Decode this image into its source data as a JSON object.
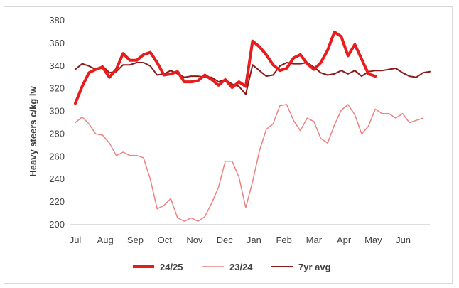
{
  "chart_data": {
    "type": "line",
    "ylabel": "Heavy steers c/kg lw",
    "xlabel": "",
    "title": "",
    "ylim": [
      200,
      380
    ],
    "yticks": [
      200,
      220,
      240,
      260,
      280,
      300,
      320,
      340,
      360,
      380
    ],
    "xticks": [
      "Jul",
      "Aug",
      "Sep",
      "Oct",
      "Nov",
      "Dec",
      "Jan",
      "Feb",
      "Mar",
      "Apr",
      "May",
      "Jun"
    ],
    "grid": "horizontal",
    "legend_position": "bottom",
    "series": [
      {
        "name": "24/25",
        "color": "#e81c1c",
        "width": 4,
        "values": [
          307,
          322,
          334,
          337,
          339,
          330,
          337,
          351,
          345,
          345,
          350,
          352,
          343,
          332,
          333,
          335,
          326,
          326,
          327,
          332,
          328,
          323,
          328,
          321,
          326,
          322,
          362,
          357,
          350,
          341,
          336,
          338,
          347,
          350,
          342,
          337,
          343,
          354,
          370,
          366,
          349,
          359,
          346,
          333,
          331
        ]
      },
      {
        "name": "23/24",
        "color": "#f08080",
        "width": 1.5,
        "values": [
          290,
          295,
          289,
          280,
          279,
          272,
          261,
          264,
          261,
          261,
          259,
          240,
          214,
          217,
          223,
          206,
          203,
          206,
          203,
          207,
          219,
          233,
          256,
          256,
          242,
          215,
          238,
          265,
          284,
          289,
          305,
          306,
          292,
          283,
          294,
          291,
          276,
          272,
          288,
          301,
          306,
          297,
          280,
          287,
          302,
          298,
          298,
          294,
          298,
          290,
          292,
          294
        ]
      },
      {
        "name": "7yr avg",
        "color": "#8b1a1a",
        "width": 2,
        "values": [
          337,
          342,
          340,
          337,
          340,
          334,
          335,
          341,
          341,
          343,
          343,
          340,
          332,
          333,
          336,
          333,
          330,
          331,
          331,
          330,
          330,
          326,
          328,
          324,
          322,
          315,
          341,
          336,
          331,
          332,
          340,
          343,
          342,
          342,
          343,
          339,
          334,
          332,
          333,
          336,
          333,
          336,
          331,
          335,
          336,
          336,
          337,
          338,
          334,
          331,
          330,
          334,
          335
        ]
      }
    ]
  }
}
